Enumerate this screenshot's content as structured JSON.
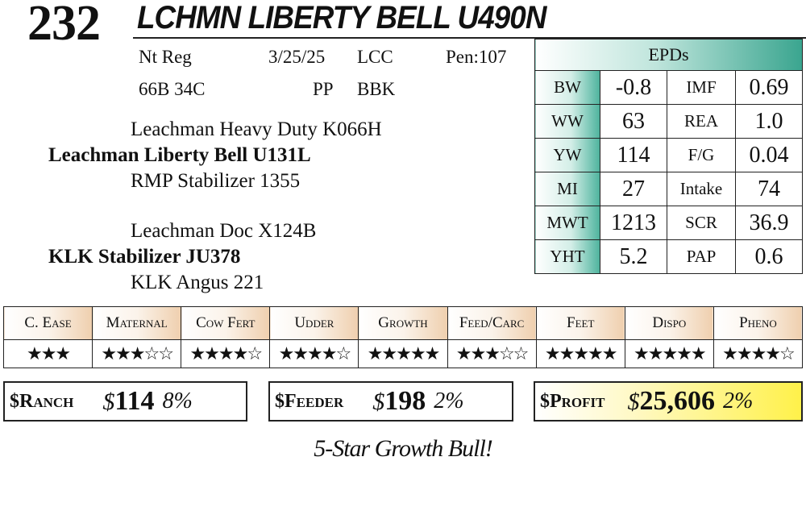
{
  "lot": "232",
  "name": "LCHMN LIBERTY BELL U490N",
  "info": {
    "reg": "Nt Reg",
    "date": "3/25/25",
    "loc": "LCC",
    "pen": "Pen:107",
    "tag": "66B 34C",
    "pp": "PP",
    "color": "BBK"
  },
  "pedigree": {
    "sire_sire": "Leachman Heavy Duty K066H",
    "sire": "Leachman Liberty Bell U131L",
    "sire_dam": "RMP Stabilizer 1355",
    "dam_sire": "Leachman Doc X124B",
    "dam": "KLK Stabilizer JU378",
    "dam_dam": "KLK Angus 221"
  },
  "epds": {
    "title": "EPDs",
    "rows": [
      {
        "l1": "BW",
        "v1": "-0.8",
        "l2": "IMF",
        "v2": "0.69"
      },
      {
        "l1": "WW",
        "v1": "63",
        "l2": "REA",
        "v2": "1.0"
      },
      {
        "l1": "YW",
        "v1": "114",
        "l2": "F/G",
        "v2": "0.04"
      },
      {
        "l1": "MI",
        "v1": "27",
        "l2": "Intake",
        "v2": "74"
      },
      {
        "l1": "MWT",
        "v1": "1213",
        "l2": "SCR",
        "v2": "36.9"
      },
      {
        "l1": "YHT",
        "v1": "5.2",
        "l2": "PAP",
        "v2": "0.6"
      }
    ]
  },
  "ratings": [
    {
      "label": "C. Ease",
      "stars": "★★★"
    },
    {
      "label": "Maternal",
      "stars": "★★★☆☆"
    },
    {
      "label": "Cow Fert",
      "stars": "★★★★☆"
    },
    {
      "label": "Udder",
      "stars": "★★★★☆"
    },
    {
      "label": "Growth",
      "stars": "★★★★★"
    },
    {
      "label": "Feed/Carc",
      "stars": "★★★☆☆"
    },
    {
      "label": "Feet",
      "stars": "★★★★★"
    },
    {
      "label": "Dispo",
      "stars": "★★★★★"
    },
    {
      "label": "Pheno",
      "stars": "★★★★☆"
    }
  ],
  "indexes": {
    "ranch": {
      "label": "$Ranch",
      "dollar": "$",
      "value": "114",
      "pct": "8%"
    },
    "feeder": {
      "label": "$Feeder",
      "dollar": "$",
      "value": "198",
      "pct": "2%"
    },
    "profit": {
      "label": "$Profit",
      "dollar": "$",
      "value": "25,606",
      "pct": "2%"
    }
  },
  "tagline": "5-Star Growth Bull!"
}
